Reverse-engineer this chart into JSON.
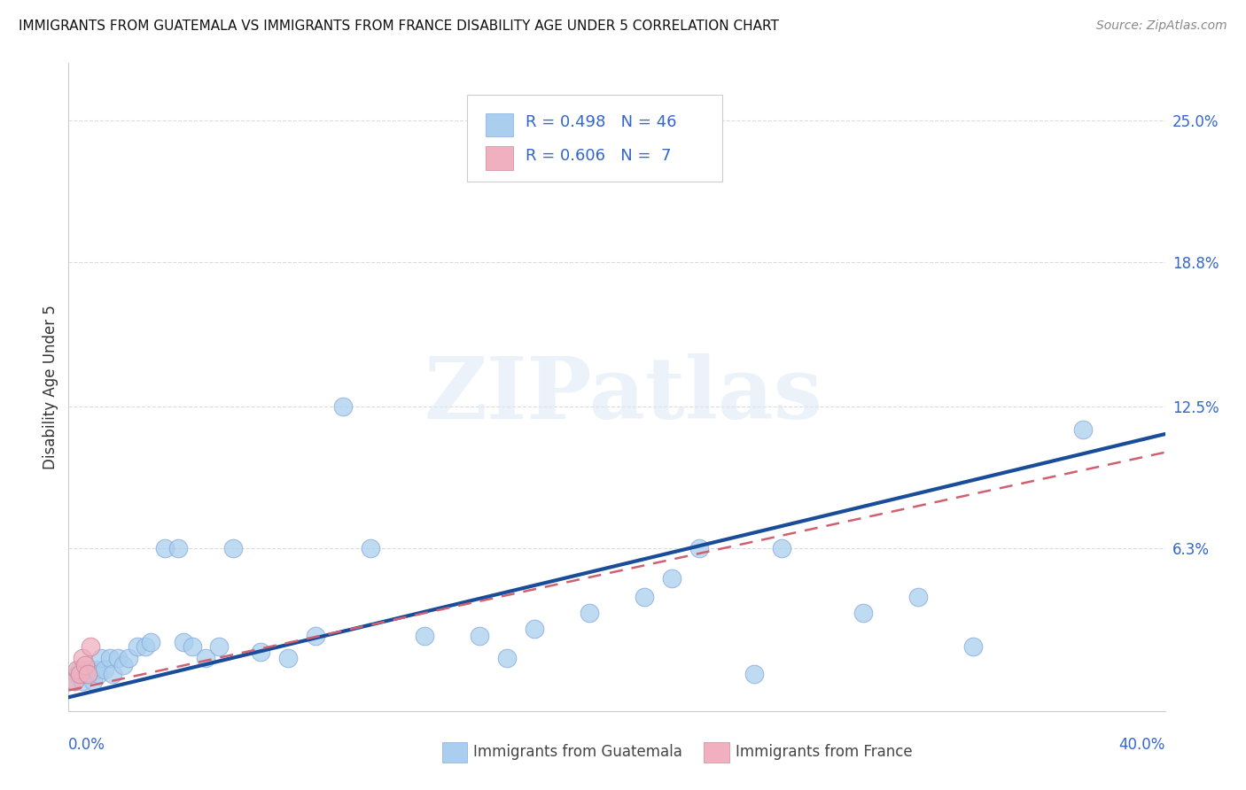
{
  "title": "IMMIGRANTS FROM GUATEMALA VS IMMIGRANTS FROM FRANCE DISABILITY AGE UNDER 5 CORRELATION CHART",
  "source": "Source: ZipAtlas.com",
  "ylabel": "Disability Age Under 5",
  "ytick_labels": [
    "25.0%",
    "18.8%",
    "12.5%",
    "6.3%"
  ],
  "ytick_values": [
    0.25,
    0.188,
    0.125,
    0.063
  ],
  "xlim": [
    0.0,
    0.4
  ],
  "ylim": [
    -0.008,
    0.275
  ],
  "guatemala_color": "#aacfee",
  "france_color": "#f0b0c0",
  "line_guatemala_color": "#1a4d99",
  "line_france_color": "#d06070",
  "guatemala_x": [
    0.002,
    0.003,
    0.004,
    0.005,
    0.006,
    0.007,
    0.008,
    0.009,
    0.01,
    0.011,
    0.012,
    0.013,
    0.015,
    0.016,
    0.018,
    0.02,
    0.022,
    0.025,
    0.028,
    0.03,
    0.035,
    0.04,
    0.042,
    0.045,
    0.05,
    0.055,
    0.06,
    0.07,
    0.08,
    0.09,
    0.1,
    0.11,
    0.13,
    0.15,
    0.16,
    0.17,
    0.19,
    0.21,
    0.22,
    0.23,
    0.25,
    0.26,
    0.29,
    0.31,
    0.33,
    0.37
  ],
  "guatemala_y": [
    0.005,
    0.008,
    0.01,
    0.005,
    0.01,
    0.008,
    0.01,
    0.005,
    0.01,
    0.008,
    0.015,
    0.01,
    0.015,
    0.008,
    0.015,
    0.012,
    0.015,
    0.02,
    0.02,
    0.022,
    0.063,
    0.063,
    0.022,
    0.02,
    0.015,
    0.02,
    0.063,
    0.018,
    0.015,
    0.025,
    0.125,
    0.063,
    0.025,
    0.025,
    0.015,
    0.028,
    0.035,
    0.042,
    0.05,
    0.063,
    0.008,
    0.063,
    0.035,
    0.042,
    0.02,
    0.115
  ],
  "france_x": [
    0.002,
    0.003,
    0.004,
    0.005,
    0.006,
    0.007,
    0.008
  ],
  "france_y": [
    0.005,
    0.01,
    0.008,
    0.015,
    0.012,
    0.008,
    0.02
  ],
  "guatemala_line_x0": 0.0,
  "guatemala_line_y0": -0.002,
  "guatemala_line_x1": 0.4,
  "guatemala_line_y1": 0.113,
  "france_line_x0": 0.0,
  "france_line_y0": 0.001,
  "france_line_x1": 0.4,
  "france_line_y1": 0.105,
  "background_color": "#ffffff",
  "grid_color": "#cccccc"
}
